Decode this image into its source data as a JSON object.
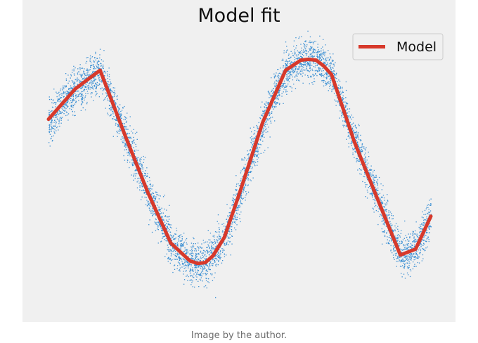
{
  "caption": "Image by the author.",
  "colors": {
    "figure_background": "#f0f0f0",
    "scatter": "#3a8fd3",
    "model_line": "#d7392b",
    "legend_background": "#f0f0f0",
    "legend_border": "#cccccc",
    "text": "#111111"
  },
  "chart_data": {
    "type": "line",
    "title": "Model fit",
    "xlabel": "",
    "ylabel": "",
    "axes_visible": false,
    "grid": false,
    "legend_position": "top-right",
    "xlim": [
      0.0,
      1.0
    ],
    "ylim": [
      -1.4,
      1.4
    ],
    "scatter": {
      "style": "dense noisy point cloud around a sine curve",
      "x_range": [
        0.0,
        1.0
      ],
      "noise_std": 0.12
    },
    "series": [
      {
        "name": "Model",
        "style": "thick red polyline",
        "x": [
          0.0,
          0.07,
          0.135,
          0.2,
          0.26,
          0.32,
          0.37,
          0.39,
          0.41,
          0.43,
          0.46,
          0.5,
          0.56,
          0.62,
          0.66,
          0.68,
          0.7,
          0.72,
          0.74,
          0.8,
          0.86,
          0.92,
          0.96,
          1.0
        ],
        "y": [
          0.42,
          0.78,
          1.0,
          0.23,
          -0.45,
          -1.05,
          -1.26,
          -1.29,
          -1.28,
          -1.2,
          -0.98,
          -0.45,
          0.38,
          1.0,
          1.12,
          1.13,
          1.12,
          1.05,
          0.95,
          0.15,
          -0.52,
          -1.19,
          -1.12,
          -0.73
        ]
      }
    ]
  }
}
